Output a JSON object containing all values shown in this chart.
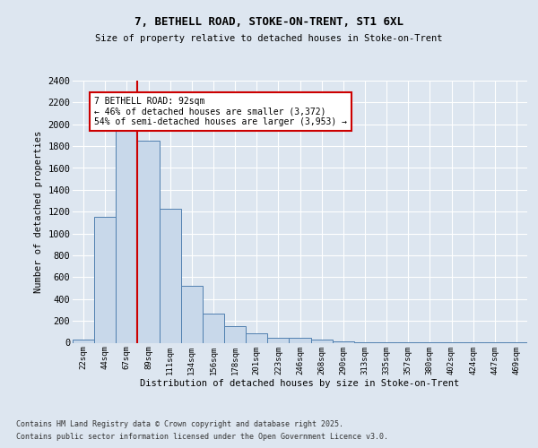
{
  "title1": "7, BETHELL ROAD, STOKE-ON-TRENT, ST1 6XL",
  "title2": "Size of property relative to detached houses in Stoke-on-Trent",
  "xlabel": "Distribution of detached houses by size in Stoke-on-Trent",
  "ylabel": "Number of detached properties",
  "categories": [
    "22sqm",
    "44sqm",
    "67sqm",
    "89sqm",
    "111sqm",
    "134sqm",
    "156sqm",
    "178sqm",
    "201sqm",
    "223sqm",
    "246sqm",
    "268sqm",
    "290sqm",
    "313sqm",
    "335sqm",
    "357sqm",
    "380sqm",
    "402sqm",
    "424sqm",
    "447sqm",
    "469sqm"
  ],
  "values": [
    25,
    1150,
    1960,
    1850,
    1230,
    520,
    270,
    150,
    90,
    45,
    45,
    30,
    15,
    8,
    3,
    3,
    2,
    2,
    2,
    2,
    1
  ],
  "bar_color": "#c8d8ea",
  "bar_edge_color": "#5080b0",
  "highlight_index": 3,
  "vline_color": "#cc0000",
  "annotation_text": "7 BETHELL ROAD: 92sqm\n← 46% of detached houses are smaller (3,372)\n54% of semi-detached houses are larger (3,953) →",
  "annotation_box_color": "#ffffff",
  "annotation_box_edge_color": "#cc0000",
  "background_color": "#dde6f0",
  "plot_bg_color": "#dde6f0",
  "ylim": [
    0,
    2400
  ],
  "yticks": [
    0,
    200,
    400,
    600,
    800,
    1000,
    1200,
    1400,
    1600,
    1800,
    2000,
    2200,
    2400
  ],
  "footer1": "Contains HM Land Registry data © Crown copyright and database right 2025.",
  "footer2": "Contains public sector information licensed under the Open Government Licence v3.0."
}
